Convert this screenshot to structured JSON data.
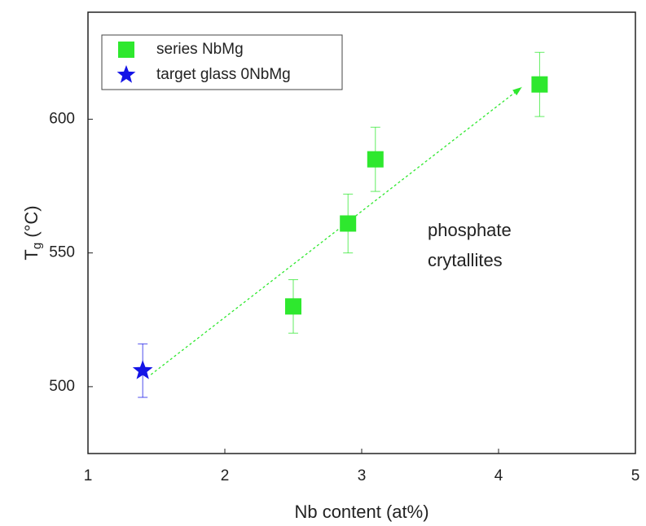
{
  "chart_data": {
    "type": "scatter",
    "xlabel": "Nb content (at%)",
    "ylabel": {
      "main": "T",
      "sub": "g",
      "unit": " (°C)"
    },
    "xlim": [
      1,
      5
    ],
    "xticks": [
      1,
      2,
      3,
      4,
      5
    ],
    "ylim": [
      475,
      640
    ],
    "yticks": [
      500,
      550,
      600
    ],
    "grid": false,
    "legend": "upper left",
    "series": [
      {
        "name": "series NbMg",
        "color": "#2ee82e",
        "marker": "square",
        "x": [
          2.5,
          2.9,
          3.1,
          4.3
        ],
        "values": [
          530,
          561,
          585,
          613
        ],
        "errors": [
          10,
          11,
          12,
          12
        ]
      },
      {
        "name": "target glass 0NbMg",
        "color": "#1414e6",
        "marker": "star",
        "x": [
          1.4
        ],
        "values": [
          506
        ],
        "errors": [
          10
        ]
      }
    ],
    "arrow": {
      "color": "#2ee82e",
      "x": [
        1.46,
        4.17
      ],
      "y": [
        504.5,
        612
      ]
    },
    "annotation": [
      "phosphate",
      "crytallites"
    ]
  }
}
